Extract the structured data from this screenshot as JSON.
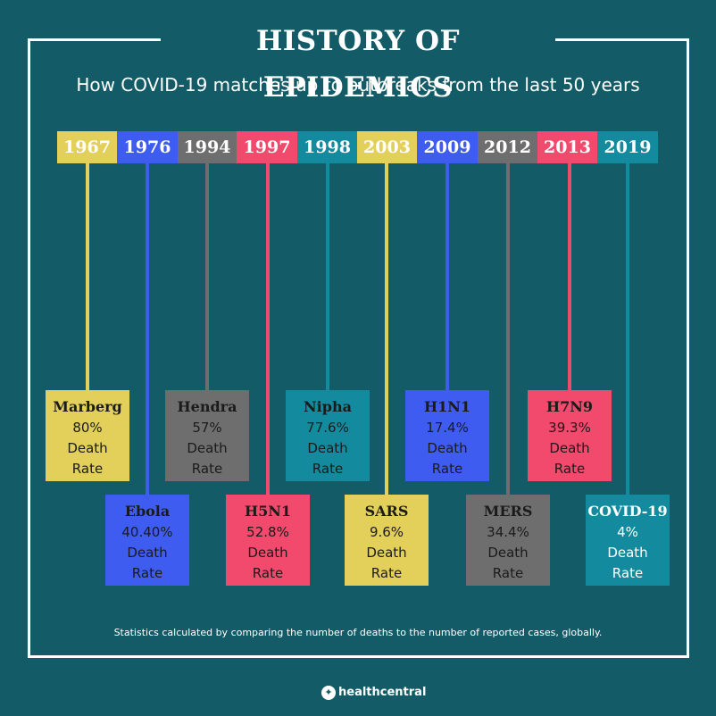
{
  "header": {
    "title": "HISTORY OF EPIDEMICS",
    "subtitle": "How COVID-19 matches up to outbreaks from the last 50 years"
  },
  "colors": {
    "background": "#135c67",
    "yellow": "#e3d05a",
    "blue": "#3f5cf0",
    "gray": "#6e6e6e",
    "pink": "#f14a6d",
    "teal": "#138a9d"
  },
  "timeline": [
    {
      "year": "1967",
      "name": "Marberg",
      "rate": "80%",
      "label_line1": "Death",
      "label_line2": "Rate",
      "color": "#e3d05a",
      "text_color": "#1b1b1b"
    },
    {
      "year": "1976",
      "name": "Ebola",
      "rate": "40.40%",
      "label_line1": "Death",
      "label_line2": "Rate",
      "color": "#3f5cf0",
      "text_color": "#1b1b1b"
    },
    {
      "year": "1994",
      "name": "Hendra",
      "rate": "57%",
      "label_line1": "Death",
      "label_line2": "Rate",
      "color": "#6e6e6e",
      "text_color": "#1b1b1b"
    },
    {
      "year": "1997",
      "name": "H5N1",
      "rate": "52.8%",
      "label_line1": "Death",
      "label_line2": "Rate",
      "color": "#f14a6d",
      "text_color": "#1b1b1b"
    },
    {
      "year": "1998",
      "name": "Nipha",
      "rate": "77.6%",
      "label_line1": "Death",
      "label_line2": "Rate",
      "color": "#138a9d",
      "text_color": "#1b1b1b"
    },
    {
      "year": "2003",
      "name": "SARS",
      "rate": "9.6%",
      "label_line1": "Death",
      "label_line2": "Rate",
      "color": "#e3d05a",
      "text_color": "#1b1b1b"
    },
    {
      "year": "2009",
      "name": "H1N1",
      "rate": "17.4%",
      "label_line1": "Death",
      "label_line2": "Rate",
      "color": "#3f5cf0",
      "text_color": "#1b1b1b"
    },
    {
      "year": "2012",
      "name": "MERS",
      "rate": "34.4%",
      "label_line1": "Death",
      "label_line2": "Rate",
      "color": "#6e6e6e",
      "text_color": "#1b1b1b"
    },
    {
      "year": "2013",
      "name": "H7N9",
      "rate": "39.3%",
      "label_line1": "Death",
      "label_line2": "Rate",
      "color": "#f14a6d",
      "text_color": "#1b1b1b"
    },
    {
      "year": "2019",
      "name": "COVID-19",
      "rate": "4%",
      "label_line1": "Death",
      "label_line2": "Rate",
      "color": "#138a9d",
      "text_color": "#ffffff"
    }
  ],
  "footer": {
    "note": "Statistics calculated by comparing the number of deaths to the number of reported cases, globally.",
    "brand": "healthcentral",
    "brand_icon": "healthcentral-logo-icon"
  }
}
